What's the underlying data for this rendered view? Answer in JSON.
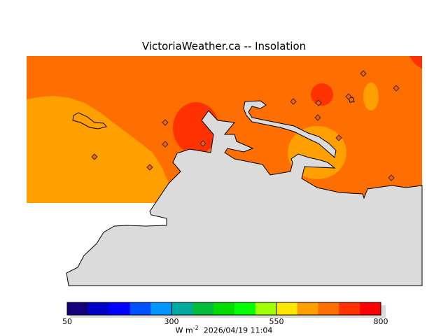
{
  "title": "VictoriaWeather.ca -- Insolation",
  "colorbar": {
    "ticks": [
      "50",
      "300",
      "550",
      "800"
    ],
    "colors": [
      "#14007a",
      "#0000c8",
      "#0000ff",
      "#0050ff",
      "#0096ff",
      "#00aaa0",
      "#00be3c",
      "#00dc00",
      "#00ff00",
      "#a0ff00",
      "#ffe600",
      "#ffa000",
      "#ff6e00",
      "#ff3200",
      "#ff0000"
    ],
    "units_base": "W m",
    "units_exp": "-2",
    "timestamp": "2026/04/19 11:04"
  },
  "map": {
    "field_color": "#ff6e00",
    "low_color": "#ffa000",
    "high_color": "#ff3200",
    "land_color": "#dbdbdb",
    "station_count": 13
  }
}
